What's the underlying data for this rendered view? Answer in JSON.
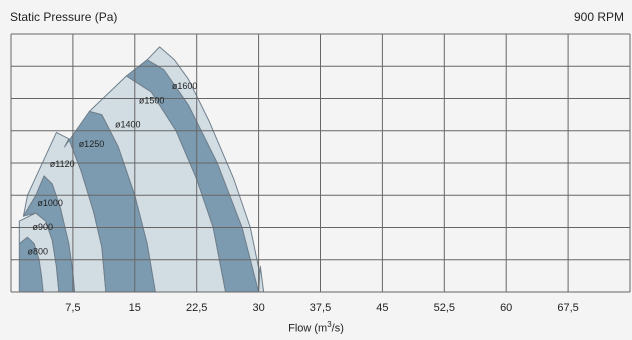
{
  "chart_data": {
    "type": "area",
    "title": "",
    "ylabel": "Static Pressure (Pa)",
    "annotation": "900 RPM",
    "xlabel_prefix": "Flow (m",
    "xlabel_sup": "3",
    "xlabel_suffix": "/s)",
    "xlim": [
      0,
      75
    ],
    "x_ticks": [
      7.5,
      15,
      22.5,
      30,
      37.5,
      45,
      52.5,
      60,
      67.5
    ],
    "x_tick_labels": [
      "7,5",
      "15",
      "22,5",
      "30",
      "37,5",
      "45",
      "52,5",
      "60",
      "67,5"
    ],
    "ylim": [
      0,
      8
    ],
    "grid": true,
    "y_tick_labels": [],
    "colors": {
      "light": "#d2dce3",
      "dark": "#7c9bb0",
      "outline": "#6f7f8c",
      "grid": "#666666",
      "text": "#222222"
    },
    "series": [
      {
        "name": "ø800",
        "shade": "dark",
        "points": [
          [
            1.0,
            1.5
          ],
          [
            2.0,
            1.7
          ],
          [
            2.8,
            1.5
          ],
          [
            3.4,
            1.0
          ],
          [
            3.7,
            0.5
          ],
          [
            3.9,
            0.0
          ],
          [
            1.0,
            0.0
          ]
        ],
        "label_at": [
          2.0,
          1.17
        ]
      },
      {
        "name": "ø900",
        "shade": "light",
        "points": [
          [
            1.0,
            2.2
          ],
          [
            3.0,
            2.45
          ],
          [
            4.2,
            2.2
          ],
          [
            5.0,
            1.6
          ],
          [
            5.5,
            0.8
          ],
          [
            5.8,
            0.0
          ],
          [
            3.9,
            0.0
          ],
          [
            3.7,
            0.5
          ],
          [
            3.4,
            1.0
          ],
          [
            2.8,
            1.5
          ],
          [
            2.0,
            1.7
          ],
          [
            1.0,
            1.5
          ]
        ],
        "label_at": [
          2.6,
          1.93
        ]
      },
      {
        "name": "ø1000",
        "shade": "dark",
        "points": [
          [
            1.5,
            2.35
          ],
          [
            3.0,
            3.0
          ],
          [
            4.0,
            3.6
          ],
          [
            5.0,
            3.35
          ],
          [
            6.0,
            2.6
          ],
          [
            7.0,
            1.5
          ],
          [
            7.5,
            0.6
          ],
          [
            7.7,
            0.0
          ],
          [
            5.8,
            0.0
          ],
          [
            5.5,
            0.8
          ],
          [
            5.0,
            1.6
          ],
          [
            4.2,
            2.2
          ],
          [
            3.0,
            2.45
          ]
        ],
        "label_at": [
          3.2,
          2.67
        ]
      },
      {
        "name": "ø1120",
        "shade": "light",
        "points": [
          [
            2.0,
            3.0
          ],
          [
            5.5,
            4.95
          ],
          [
            7.0,
            4.75
          ],
          [
            8.5,
            3.75
          ],
          [
            10.0,
            2.5
          ],
          [
            11.0,
            1.4
          ],
          [
            11.5,
            0.0
          ],
          [
            7.7,
            0.0
          ],
          [
            7.5,
            0.6
          ],
          [
            7.0,
            1.5
          ],
          [
            6.0,
            2.6
          ],
          [
            5.0,
            3.35
          ],
          [
            4.0,
            3.6
          ],
          [
            3.0,
            3.0
          ],
          [
            1.5,
            2.35
          ]
        ],
        "label_at": [
          4.7,
          3.87
        ]
      },
      {
        "name": "ø1250",
        "shade": "dark",
        "points": [
          [
            6.5,
            4.5
          ],
          [
            9.5,
            5.6
          ],
          [
            11.0,
            5.5
          ],
          [
            13.0,
            4.5
          ],
          [
            15.0,
            3.0
          ],
          [
            16.5,
            1.5
          ],
          [
            17.5,
            0.0
          ],
          [
            11.5,
            0.0
          ],
          [
            11.0,
            1.4
          ],
          [
            10.0,
            2.5
          ],
          [
            8.5,
            3.75
          ],
          [
            7.0,
            4.75
          ]
        ],
        "label_at": [
          8.2,
          4.5
        ]
      },
      {
        "name": "ø1400",
        "shade": "light",
        "points": [
          [
            9.5,
            5.6
          ],
          [
            14.0,
            6.7
          ],
          [
            17.0,
            6.2
          ],
          [
            20.0,
            5.0
          ],
          [
            22.5,
            3.5
          ],
          [
            24.5,
            2.0
          ],
          [
            26.0,
            0.0
          ],
          [
            17.5,
            0.0
          ],
          [
            16.5,
            1.5
          ],
          [
            15.0,
            3.0
          ],
          [
            13.0,
            4.5
          ],
          [
            11.0,
            5.5
          ]
        ],
        "label_at": [
          12.6,
          5.1
        ]
      },
      {
        "name": "ø1500",
        "shade": "dark",
        "points": [
          [
            14.0,
            6.7
          ],
          [
            16.5,
            7.2
          ],
          [
            18.5,
            6.9
          ],
          [
            21.5,
            5.8
          ],
          [
            25.0,
            4.0
          ],
          [
            28.0,
            2.0
          ],
          [
            30.0,
            0.0
          ],
          [
            26.0,
            0.0
          ],
          [
            24.5,
            2.0
          ],
          [
            22.5,
            3.5
          ],
          [
            20.0,
            5.0
          ],
          [
            17.0,
            6.2
          ]
        ],
        "label_at": [
          15.5,
          5.85
        ]
      },
      {
        "name": "ø1600",
        "shade": "light",
        "points": [
          [
            16.5,
            7.2
          ],
          [
            18.0,
            7.6
          ],
          [
            19.8,
            7.2
          ],
          [
            21.5,
            6.6
          ],
          [
            24.0,
            5.3
          ],
          [
            27.0,
            3.5
          ],
          [
            29.0,
            2.0
          ],
          [
            30.6,
            0.0
          ],
          [
            30.0,
            0.0
          ],
          [
            28.0,
            2.0
          ],
          [
            25.0,
            4.0
          ],
          [
            21.5,
            5.8
          ],
          [
            18.5,
            6.9
          ]
        ],
        "label_at": [
          19.5,
          6.3
        ]
      },
      {
        "name": "ø1600-tail",
        "shade": "light",
        "label_at": null,
        "points": [
          [
            30.0,
            0.0
          ],
          [
            30.6,
            0.0
          ],
          [
            30.2,
            0.8
          ]
        ]
      }
    ]
  }
}
